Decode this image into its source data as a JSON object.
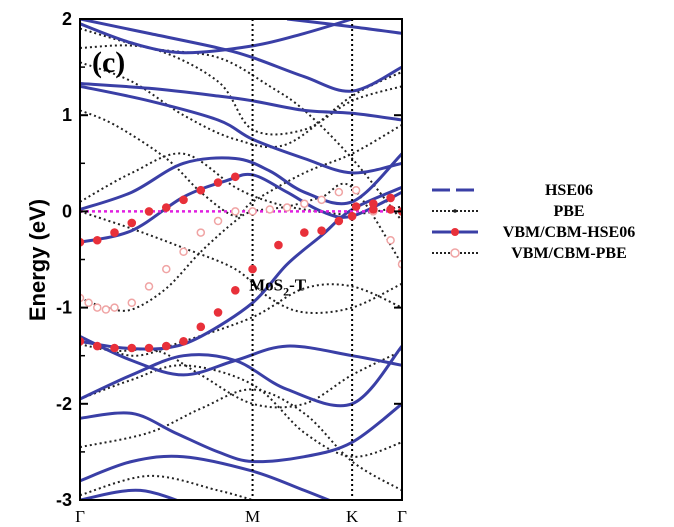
{
  "chart_data": {
    "type": "line",
    "panel_label": "(c)",
    "ylabel": "Energy (eV)",
    "ylim": [
      -3,
      2
    ],
    "yticks": [
      -3,
      -2,
      -1,
      0,
      1,
      2
    ],
    "ytick_labels": [
      "-3",
      "-2",
      "-1",
      "0",
      "1",
      "2"
    ],
    "kpoints": [
      {
        "label": "Γ",
        "pos": 0.0
      },
      {
        "label": "M",
        "pos": 1.0
      },
      {
        "label": "K",
        "pos": 1.577
      },
      {
        "label": "Γ",
        "pos": 1.866
      }
    ],
    "annotation": {
      "text": "MoS",
      "sub": "2",
      "suffix": "-T",
      "x": 0.98,
      "y": -0.82
    },
    "fermi_level": 0,
    "colors": {
      "hse": "#3a3fa6",
      "pbe": "#222222",
      "vbm_hse": "#e8303a",
      "vbm_pbe": "#f0a4a4",
      "fermi": "#e020e0"
    },
    "legend": [
      {
        "label": "HSE06",
        "style": "hse"
      },
      {
        "label": "PBE",
        "style": "pbe"
      },
      {
        "label": "VBM/CBM-HSE06",
        "style": "vbm_hse"
      },
      {
        "label": "VBM/CBM-PBE",
        "style": "vbm_pbe"
      }
    ],
    "series": [
      {
        "name": "HSE06",
        "style": "hse",
        "bands": [
          [
            [
              0,
              -3.0
            ],
            [
              0.35,
              -2.9
            ],
            [
              0.7,
              -3.1
            ]
          ],
          [
            [
              0,
              -2.8
            ],
            [
              0.3,
              -2.6
            ],
            [
              0.6,
              -2.55
            ],
            [
              1.0,
              -2.7
            ],
            [
              1.3,
              -2.9
            ],
            [
              1.577,
              -3.1
            ]
          ],
          [
            [
              0,
              -2.15
            ],
            [
              0.3,
              -2.1
            ],
            [
              0.55,
              -2.3
            ],
            [
              0.8,
              -2.5
            ],
            [
              1.0,
              -2.6
            ],
            [
              1.3,
              -2.55
            ],
            [
              1.577,
              -2.4
            ],
            [
              1.866,
              -2.0
            ]
          ],
          [
            [
              0,
              -1.95
            ],
            [
              0.3,
              -1.7
            ],
            [
              0.6,
              -1.5
            ],
            [
              0.9,
              -1.55
            ],
            [
              1.2,
              -1.85
            ],
            [
              1.577,
              -2.0
            ],
            [
              1.866,
              -1.4
            ]
          ],
          [
            [
              0,
              -1.35
            ],
            [
              0.25,
              -1.42
            ],
            [
              0.5,
              -1.42
            ],
            [
              0.7,
              -1.3
            ],
            [
              1.0,
              -0.95
            ],
            [
              1.2,
              -0.55
            ],
            [
              1.4,
              -0.25
            ],
            [
              1.577,
              0.02
            ],
            [
              1.866,
              0.25
            ]
          ],
          [
            [
              0,
              -1.3
            ],
            [
              0.3,
              -1.55
            ],
            [
              0.6,
              -1.7
            ],
            [
              0.9,
              -1.55
            ],
            [
              1.2,
              -1.4
            ],
            [
              1.577,
              -1.5
            ],
            [
              1.866,
              -1.6
            ]
          ],
          [
            [
              0,
              -0.32
            ],
            [
              0.3,
              -0.2
            ],
            [
              0.6,
              0.15
            ],
            [
              0.85,
              0.32
            ],
            [
              1.0,
              0.38
            ],
            [
              1.2,
              0.2
            ],
            [
              1.4,
              0.0
            ],
            [
              1.577,
              -0.05
            ],
            [
              1.866,
              0.2
            ]
          ],
          [
            [
              0,
              0.02
            ],
            [
              0.3,
              0.2
            ],
            [
              0.6,
              0.5
            ],
            [
              0.9,
              0.55
            ],
            [
              1.1,
              0.42
            ],
            [
              1.3,
              0.2
            ],
            [
              1.577,
              0.1
            ],
            [
              1.866,
              0.6
            ]
          ],
          [
            [
              0,
              1.3
            ],
            [
              0.4,
              1.15
            ],
            [
              0.8,
              0.95
            ],
            [
              1.0,
              0.75
            ],
            [
              1.3,
              0.55
            ],
            [
              1.577,
              0.4
            ],
            [
              1.866,
              0.5
            ]
          ],
          [
            [
              0,
              1.33
            ],
            [
              0.4,
              1.28
            ],
            [
              0.8,
              1.2
            ],
            [
              1.0,
              1.15
            ],
            [
              1.3,
              1.05
            ],
            [
              1.577,
              1.02
            ],
            [
              1.866,
              0.95
            ]
          ],
          [
            [
              0,
              2.0
            ],
            [
              0.4,
              1.85
            ],
            [
              0.8,
              1.7
            ],
            [
              1.0,
              1.6
            ],
            [
              1.3,
              1.4
            ],
            [
              1.577,
              1.25
            ],
            [
              1.866,
              1.5
            ]
          ],
          [
            [
              0,
              1.95
            ],
            [
              0.3,
              1.75
            ],
            [
              0.6,
              1.65
            ],
            [
              1.0,
              1.72
            ],
            [
              1.3,
              1.85
            ],
            [
              1.577,
              2.0
            ]
          ],
          [
            [
              1.2,
              2.0
            ],
            [
              1.577,
              1.92
            ],
            [
              1.866,
              1.85
            ]
          ]
        ]
      },
      {
        "name": "PBE",
        "style": "pbe",
        "bands": [
          [
            [
              0,
              -2.95
            ],
            [
              0.4,
              -2.75
            ],
            [
              0.8,
              -2.9
            ],
            [
              1.0,
              -3.0
            ]
          ],
          [
            [
              0,
              -2.45
            ],
            [
              0.4,
              -2.3
            ],
            [
              0.7,
              -2.05
            ],
            [
              1.0,
              -1.85
            ],
            [
              1.3,
              -2.1
            ],
            [
              1.577,
              -2.6
            ],
            [
              1.866,
              -2.9
            ]
          ],
          [
            [
              0,
              -1.95
            ],
            [
              0.3,
              -1.75
            ],
            [
              0.6,
              -1.6
            ],
            [
              1.0,
              -1.8
            ],
            [
              1.3,
              -2.3
            ],
            [
              1.577,
              -2.55
            ],
            [
              1.866,
              -2.4
            ]
          ],
          [
            [
              0,
              -1.38
            ],
            [
              0.2,
              -1.45
            ],
            [
              0.45,
              -1.45
            ],
            [
              0.7,
              -1.7
            ],
            [
              1.0,
              -2.0
            ],
            [
              1.3,
              -2.0
            ],
            [
              1.577,
              -1.7
            ],
            [
              1.866,
              -1.45
            ]
          ],
          [
            [
              0,
              -1.3
            ],
            [
              0.3,
              -1.5
            ],
            [
              0.6,
              -1.35
            ],
            [
              1.0,
              -1.1
            ],
            [
              1.3,
              -0.8
            ],
            [
              1.577,
              -0.78
            ],
            [
              1.866,
              -1.0
            ]
          ],
          [
            [
              0,
              -0.9
            ],
            [
              0.15,
              -1.0
            ],
            [
              0.3,
              -1.02
            ],
            [
              0.5,
              -0.8
            ],
            [
              0.7,
              -0.42
            ],
            [
              0.9,
              -0.1
            ],
            [
              1.0,
              0.0
            ],
            [
              1.2,
              0.05
            ],
            [
              1.4,
              0.15
            ],
            [
              1.577,
              0.25
            ],
            [
              1.866,
              -0.55
            ]
          ],
          [
            [
              0,
              0.0
            ],
            [
              0.3,
              -0.18
            ],
            [
              0.6,
              -0.38
            ],
            [
              0.9,
              -0.6
            ],
            [
              1.1,
              -0.9
            ],
            [
              1.3,
              -1.05
            ],
            [
              1.577,
              -1.0
            ],
            [
              1.866,
              -0.75
            ]
          ],
          [
            [
              0,
              0.1
            ],
            [
              0.3,
              0.4
            ],
            [
              0.6,
              0.6
            ],
            [
              0.9,
              0.25
            ],
            [
              1.1,
              0.1
            ],
            [
              1.3,
              0.02
            ],
            [
              1.577,
              -0.03
            ],
            [
              1.866,
              0.05
            ]
          ],
          [
            [
              0,
              1.05
            ],
            [
              0.2,
              0.9
            ],
            [
              0.5,
              0.55
            ],
            [
              0.7,
              0.2
            ],
            [
              0.9,
              -0.05
            ],
            [
              1.0,
              0.1
            ],
            [
              1.3,
              0.4
            ],
            [
              1.577,
              0.6
            ],
            [
              1.866,
              0.9
            ]
          ],
          [
            [
              0,
              1.55
            ],
            [
              0.3,
              1.35
            ],
            [
              0.6,
              1.0
            ],
            [
              0.9,
              0.75
            ],
            [
              1.2,
              0.7
            ],
            [
              1.577,
              1.2
            ],
            [
              1.866,
              1.45
            ]
          ],
          [
            [
              0,
              1.7
            ],
            [
              0.4,
              1.7
            ],
            [
              0.8,
              1.35
            ],
            [
              1.0,
              0.85
            ],
            [
              1.3,
              0.85
            ],
            [
              1.577,
              1.15
            ],
            [
              1.866,
              1.3
            ]
          ],
          [
            [
              0,
              1.9
            ],
            [
              0.4,
              1.7
            ],
            [
              0.8,
              1.6
            ],
            [
              1.1,
              1.3
            ],
            [
              1.3,
              1.05
            ],
            [
              1.577,
              0.55
            ],
            [
              1.866,
              -0.1
            ]
          ]
        ]
      }
    ],
    "vbm_cbm_hse06": {
      "x": [
        0,
        0.1,
        0.2,
        0.3,
        0.4,
        0.5,
        0.6,
        0.7,
        0.8,
        0.9,
        1.0,
        1.15,
        1.3,
        1.4,
        1.5,
        1.577,
        1.7,
        1.8,
        1.866
      ],
      "y": [
        -1.35,
        -1.4,
        -1.42,
        -1.42,
        -1.42,
        -1.4,
        -1.35,
        -1.2,
        -1.05,
        -0.82,
        -0.6,
        -0.35,
        -0.22,
        -0.2,
        -0.1,
        -0.05,
        0.02,
        0.02,
        0.0
      ]
    },
    "vbm_cbm_hse06_upper": {
      "x": [
        0,
        0.1,
        0.2,
        0.3,
        0.4,
        0.5,
        0.6,
        0.7,
        0.8,
        0.9,
        1.6,
        1.7,
        1.8
      ],
      "y": [
        -0.32,
        -0.3,
        -0.22,
        -0.12,
        0.0,
        0.04,
        0.12,
        0.22,
        0.3,
        0.36,
        0.05,
        0.08,
        0.14
      ]
    },
    "vbm_cbm_pbe": {
      "x": [
        0,
        0.05,
        0.1,
        0.15,
        0.2,
        0.3,
        0.4,
        0.5,
        0.6,
        0.7,
        0.8,
        0.9,
        1.0,
        1.1,
        1.2,
        1.3,
        1.4,
        1.5,
        1.6,
        1.7,
        1.8,
        1.866
      ],
      "y": [
        -0.9,
        -0.95,
        -1.0,
        -1.02,
        -1.0,
        -0.95,
        -0.78,
        -0.6,
        -0.42,
        -0.22,
        -0.1,
        0.0,
        0.0,
        0.02,
        0.04,
        0.08,
        0.12,
        0.2,
        0.22,
        0.0,
        -0.3,
        -0.55
      ]
    }
  }
}
